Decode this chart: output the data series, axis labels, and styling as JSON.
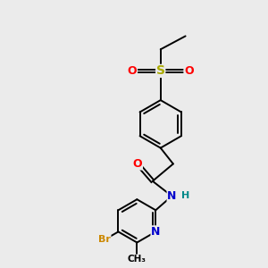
{
  "background_color": "#ebebeb",
  "bond_color": "#000000",
  "atom_colors": {
    "O": "#ff0000",
    "N": "#0000cc",
    "Br": "#cc8800",
    "S": "#aaaa00",
    "H": "#008888",
    "C": "#000000"
  },
  "font_size": 8,
  "line_width": 1.4,
  "figsize": [
    3.0,
    3.0
  ],
  "dpi": 100
}
